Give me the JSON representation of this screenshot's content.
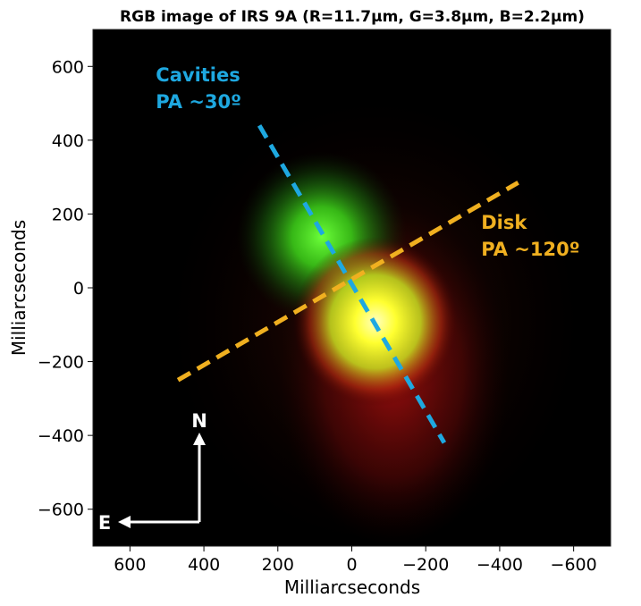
{
  "chart_data": {
    "type": "heatmap",
    "title": "RGB image of IRS 9A (R=11.7μm, G=3.8μm, B=2.2μm)",
    "xlabel": "Milliarcseconds",
    "ylabel": "Milliarcseconds",
    "xlim": [
      700,
      -700
    ],
    "ylim": [
      -700,
      700
    ],
    "xticks": [
      600,
      400,
      200,
      0,
      -200,
      -400,
      -600
    ],
    "yticks": [
      600,
      400,
      200,
      0,
      -200,
      -400,
      -600
    ],
    "xtick_labels": [
      "600",
      "400",
      "200",
      "0",
      "−200",
      "−400",
      "−600"
    ],
    "ytick_labels": [
      "600",
      "400",
      "200",
      "0",
      "−200",
      "−400",
      "−600"
    ],
    "grid": false,
    "background_color": "#000000",
    "sources": [
      {
        "name": "green-3.8um-peak",
        "x": 40,
        "y": 60,
        "color": "#5aff2a"
      },
      {
        "name": "red-yellow-11.7um-peak",
        "x": -60,
        "y": -90,
        "color": "#ffff40"
      }
    ],
    "annotations": [
      {
        "name": "cavities",
        "lines": [
          "Cavities",
          "PA ~30º"
        ],
        "color": "#1ea8e0",
        "line": {
          "x1": 250,
          "y1": 440,
          "x2": -250,
          "y2": -420,
          "style": "dashed"
        },
        "text_anchor_data": {
          "x": 530,
          "y": 560
        }
      },
      {
        "name": "disk",
        "lines": [
          "Disk",
          "PA ~120º"
        ],
        "color": "#f0b020",
        "line": {
          "x1": 470,
          "y1": -250,
          "x2": -450,
          "y2": 285,
          "style": "dashed"
        },
        "text_anchor_data": {
          "x": -350,
          "y": 160
        }
      }
    ],
    "compass": {
      "north_label": "N",
      "east_label": "E",
      "color": "#ffffff"
    }
  }
}
